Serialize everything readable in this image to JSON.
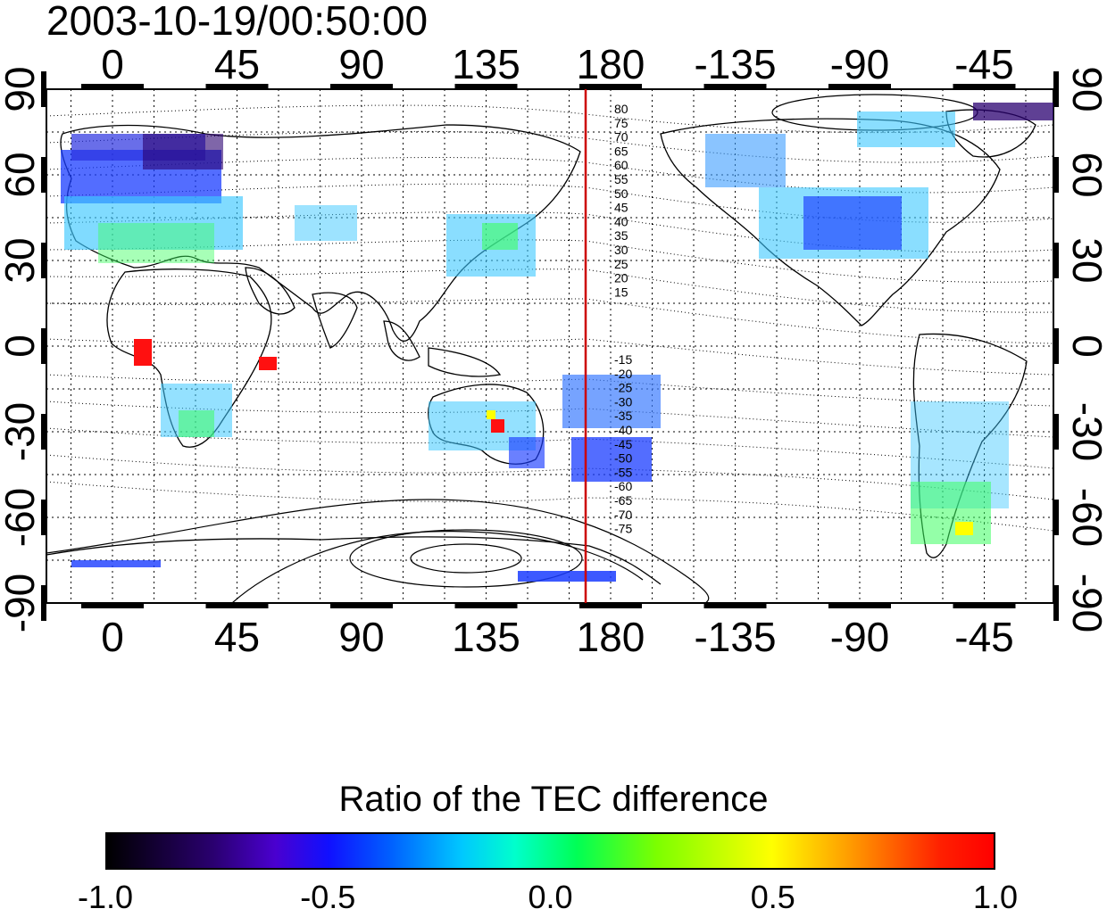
{
  "title": "2003-10-19/00:50:00",
  "map": {
    "type": "world map",
    "projection": "equirectangular",
    "grid": true,
    "lon_tick_labels": [
      "0",
      "45",
      "90",
      "135",
      "180",
      "-135",
      "-90",
      "-45"
    ],
    "lat_tick_labels": [
      "90",
      "60",
      "30",
      "0",
      "-30",
      "-60",
      "-90"
    ],
    "contour_labels_north": [
      "80",
      "75",
      "70",
      "65",
      "60",
      "55",
      "50",
      "45",
      "40",
      "35",
      "30",
      "25",
      "20",
      "15"
    ],
    "contour_labels_south": [
      "-15",
      "-20",
      "-25",
      "-30",
      "-35",
      "-40",
      "-45",
      "-50",
      "-55",
      "-60",
      "-65",
      "-70",
      "-75"
    ],
    "reference_meridian_color": "#cc0000",
    "data_colors": {
      "dark": "#2a0070",
      "blue": "#1a3cff",
      "cyan": "#3cc8ff",
      "green": "#3cff60",
      "red": "#ff1010"
    }
  },
  "legend": {
    "title": "Ratio of the TEC difference",
    "tick_labels": [
      "-1.0",
      "-0.5",
      "0.0",
      "0.5",
      "1.0"
    ],
    "range": [
      -1.0,
      1.0
    ]
  }
}
